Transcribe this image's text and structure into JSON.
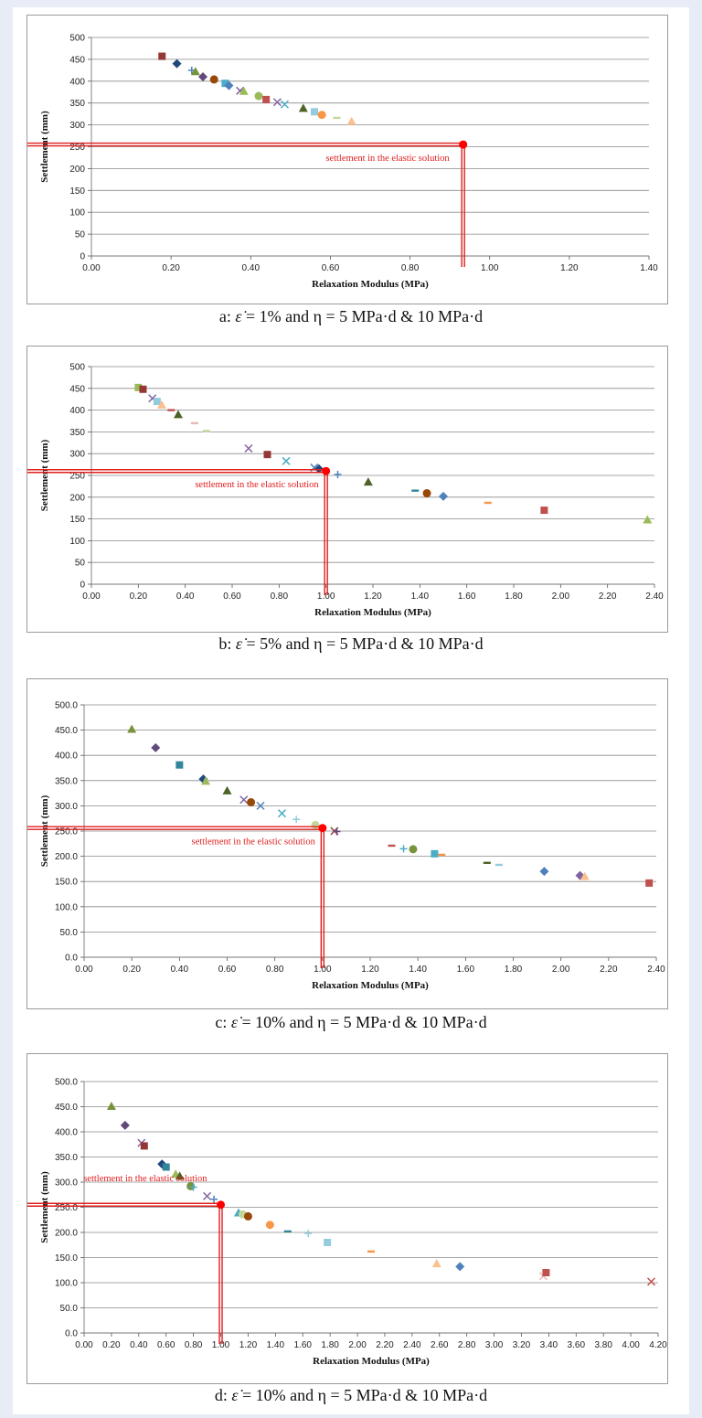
{
  "charts": [
    {
      "caption": {
        "prefix": "a: ",
        "symbol": "ε̇",
        "text": " = 1% and η = 5 MPa·d & 10 MPa·d"
      },
      "chart_data": {
        "type": "scatter",
        "title": "",
        "xlabel": "Relaxation Modulus (MPa)",
        "ylabel": "Settlement (mm)",
        "xlim": [
          0,
          1.5
        ],
        "ylim": [
          0,
          500
        ],
        "xticks": [
          "0.00",
          "0.20",
          "0.40",
          "0.60",
          "0.80",
          "1.00",
          "1.20",
          "1.40"
        ],
        "yticks": [
          "0",
          "50",
          "100",
          "150",
          "200",
          "250",
          "300",
          "350",
          "400",
          "450",
          "500"
        ],
        "grid": "horizontal",
        "annotation": {
          "text": "settlement in the elastic solution",
          "x": 1.0,
          "y": 255,
          "color": "#e01e1e"
        },
        "points": [
          [
            0.19,
            457,
            "square",
            "#953735"
          ],
          [
            0.23,
            440,
            "diamond",
            "#1f497d"
          ],
          [
            0.27,
            425,
            "plus",
            "#4f81bd"
          ],
          [
            0.28,
            422,
            "triangle",
            "#77933c"
          ],
          [
            0.3,
            410,
            "diamond",
            "#604a7b"
          ],
          [
            0.33,
            404,
            "circle",
            "#984807"
          ],
          [
            0.36,
            395,
            "square",
            "#4bacc6"
          ],
          [
            0.37,
            390,
            "diamond",
            "#4f81bd"
          ],
          [
            0.4,
            378,
            "x",
            "#8064a2"
          ],
          [
            0.41,
            377,
            "triangle",
            "#9bbb59"
          ],
          [
            0.45,
            366,
            "circle",
            "#9bbb59"
          ],
          [
            0.47,
            358,
            "square",
            "#c0504d"
          ],
          [
            0.5,
            352,
            "x",
            "#8064a2"
          ],
          [
            0.52,
            347,
            "x",
            "#4bacc6"
          ],
          [
            0.57,
            338,
            "triangle",
            "#4f6228"
          ],
          [
            0.6,
            330,
            "square",
            "#93cddd"
          ],
          [
            0.62,
            323,
            "circle",
            "#f79646"
          ],
          [
            0.66,
            316,
            "dash",
            "#c3d69b"
          ],
          [
            0.7,
            308,
            "triangle",
            "#fac090"
          ]
        ]
      }
    },
    {
      "caption": {
        "prefix": "b: ",
        "symbol": "ε̇",
        "text": " = 5% and η = 5 MPa·d & 10 MPa·d"
      },
      "chart_data": {
        "type": "scatter",
        "title": "",
        "xlabel": "Relaxation Modulus (MPa)",
        "ylabel": "Settlement (mm)",
        "xlim": [
          0,
          2.4
        ],
        "ylim": [
          0,
          500
        ],
        "xticks": [
          "0.00",
          "0.20",
          "0.40",
          "0.60",
          "0.80",
          "1.00",
          "1.20",
          "1.40",
          "1.60",
          "1.80",
          "2.00",
          "2.20",
          "2.40"
        ],
        "yticks": [
          "0",
          "50",
          "100",
          "150",
          "200",
          "250",
          "300",
          "350",
          "400",
          "450",
          "500"
        ],
        "grid": "horizontal",
        "annotation": {
          "text": "settlement in the elastic solution",
          "x": 1.0,
          "y": 260,
          "color": "#e01e1e"
        },
        "points": [
          [
            0.2,
            452,
            "square",
            "#9bbb59"
          ],
          [
            0.22,
            448,
            "square",
            "#953735"
          ],
          [
            0.26,
            427,
            "x",
            "#8064a2"
          ],
          [
            0.28,
            420,
            "square",
            "#93cddd"
          ],
          [
            0.3,
            412,
            "triangle",
            "#fac090"
          ],
          [
            0.34,
            400,
            "dash",
            "#c0504d"
          ],
          [
            0.37,
            390,
            "triangle",
            "#4f6228"
          ],
          [
            0.44,
            370,
            "dash",
            "#e6b9b8"
          ],
          [
            0.49,
            352,
            "dash",
            "#c3d69b"
          ],
          [
            0.67,
            312,
            "x",
            "#8064a2"
          ],
          [
            0.75,
            298,
            "square",
            "#953735"
          ],
          [
            0.83,
            283,
            "x",
            "#4bacc6"
          ],
          [
            0.95,
            268,
            "x",
            "#4f81bd"
          ],
          [
            0.97,
            265,
            "diamond",
            "#1f497d"
          ],
          [
            1.05,
            252,
            "plus",
            "#4f81bd"
          ],
          [
            1.18,
            235,
            "triangle",
            "#4f6228"
          ],
          [
            1.38,
            215,
            "dash",
            "#31859c"
          ],
          [
            1.43,
            209,
            "circle",
            "#984807"
          ],
          [
            1.5,
            202,
            "diamond",
            "#4f81bd"
          ],
          [
            1.69,
            187,
            "dash",
            "#f79646"
          ],
          [
            1.93,
            170,
            "square",
            "#c0504d"
          ],
          [
            2.37,
            148,
            "triangle",
            "#9bbb59"
          ]
        ]
      }
    },
    {
      "caption": {
        "prefix": "c: ",
        "symbol": "ε̇",
        "text": " = 10% and η = 5 MPa·d & 10 MPa·d"
      },
      "chart_data": {
        "type": "scatter",
        "title": "",
        "xlabel": "Relaxation Modulus (MPa)",
        "ylabel": "Settlement (mm)",
        "xlim": [
          0,
          2.4
        ],
        "ylim": [
          0,
          500
        ],
        "xticks": [
          "0.00",
          "0.20",
          "0.40",
          "0.60",
          "0.80",
          "1.00",
          "1.20",
          "1.40",
          "1.60",
          "1.80",
          "2.00",
          "2.20",
          "2.40"
        ],
        "yticks": [
          "0.0",
          "50.0",
          "100.0",
          "150.0",
          "200.0",
          "250.0",
          "300.0",
          "350.0",
          "400.0",
          "450.0",
          "500.0"
        ],
        "grid": "horizontal",
        "annotation": {
          "text": "settlement in the elastic solution",
          "x": 1.0,
          "y": 256,
          "color": "#e01e1e"
        },
        "points": [
          [
            0.2,
            452,
            "triangle",
            "#77933c"
          ],
          [
            0.3,
            415,
            "diamond",
            "#604a7b"
          ],
          [
            0.4,
            381,
            "square",
            "#31859c"
          ],
          [
            0.5,
            353,
            "diamond",
            "#1f497d"
          ],
          [
            0.51,
            349,
            "triangle",
            "#9bbb59"
          ],
          [
            0.6,
            330,
            "triangle",
            "#4f6228"
          ],
          [
            0.67,
            312,
            "x",
            "#8064a2"
          ],
          [
            0.7,
            307,
            "circle",
            "#984807"
          ],
          [
            0.74,
            300,
            "x",
            "#4f81bd"
          ],
          [
            0.83,
            285,
            "x",
            "#4bacc6"
          ],
          [
            0.89,
            273,
            "plus",
            "#93cddd"
          ],
          [
            0.97,
            262,
            "circle",
            "#c3d69b"
          ],
          [
            1.05,
            250,
            "x",
            "#953735"
          ],
          [
            1.06,
            249,
            "plus",
            "#604a7b"
          ],
          [
            1.29,
            221,
            "dash",
            "#c0504d"
          ],
          [
            1.34,
            215,
            "plus",
            "#4bacc6"
          ],
          [
            1.38,
            214,
            "circle",
            "#77933c"
          ],
          [
            1.47,
            205,
            "square",
            "#4bacc6"
          ],
          [
            1.5,
            203,
            "dash",
            "#f79646"
          ],
          [
            1.69,
            187,
            "dash",
            "#4f6228"
          ],
          [
            1.74,
            183,
            "dash",
            "#93cddd"
          ],
          [
            1.93,
            170,
            "diamond",
            "#4f81bd"
          ],
          [
            2.08,
            162,
            "diamond",
            "#8064a2"
          ],
          [
            2.1,
            160,
            "triangle",
            "#fac090"
          ],
          [
            2.37,
            147,
            "square",
            "#c0504d"
          ]
        ]
      }
    },
    {
      "caption": {
        "prefix": "d: ",
        "symbol": "ε̇",
        "text": " = 10% and η = 5 MPa·d & 10 MPa·d"
      },
      "chart_data": {
        "type": "scatter",
        "title": "",
        "xlabel": "Relaxation Modulus (MPa)",
        "ylabel": "Settlement (mm)",
        "xlim": [
          0,
          4.2
        ],
        "ylim": [
          0,
          500
        ],
        "xticks": [
          "0.00",
          "0.20",
          "0.40",
          "0.60",
          "0.80",
          "1.00",
          "1.20",
          "1.40",
          "1.60",
          "1.80",
          "2.00",
          "2.20",
          "2.40",
          "2.60",
          "2.80",
          "3.00",
          "3.20",
          "3.40",
          "3.60",
          "3.80",
          "4.00",
          "4.20"
        ],
        "yticks": [
          "0.0",
          "50.0",
          "100.0",
          "150.0",
          "200.0",
          "250.0",
          "300.0",
          "350.0",
          "400.0",
          "450.0",
          "500.0"
        ],
        "grid": "horizontal",
        "annotation": {
          "text": "settlement in the elastic solution",
          "x": 1.0,
          "y": 255,
          "color": "#e01e1e"
        },
        "points": [
          [
            0.2,
            451,
            "triangle",
            "#77933c"
          ],
          [
            0.3,
            413,
            "diamond",
            "#604a7b"
          ],
          [
            0.42,
            378,
            "x",
            "#8064a2"
          ],
          [
            0.44,
            372,
            "square",
            "#953735"
          ],
          [
            0.57,
            336,
            "diamond",
            "#1f497d"
          ],
          [
            0.6,
            330,
            "square",
            "#31859c"
          ],
          [
            0.67,
            316,
            "triangle",
            "#9bbb59"
          ],
          [
            0.7,
            312,
            "triangle",
            "#4f6228"
          ],
          [
            0.78,
            292,
            "circle",
            "#77933c"
          ],
          [
            0.8,
            290,
            "plus",
            "#4bacc6"
          ],
          [
            0.9,
            272,
            "x",
            "#8064a2"
          ],
          [
            0.95,
            266,
            "plus",
            "#4f81bd"
          ],
          [
            1.13,
            239,
            "triangle",
            "#4bacc6"
          ],
          [
            1.16,
            236,
            "circle",
            "#c3d69b"
          ],
          [
            1.2,
            232,
            "circle",
            "#984807"
          ],
          [
            1.36,
            215,
            "circle",
            "#f79646"
          ],
          [
            1.49,
            202,
            "dash",
            "#31859c"
          ],
          [
            1.64,
            198,
            "plus",
            "#93cddd"
          ],
          [
            1.78,
            180,
            "square",
            "#93cddd"
          ],
          [
            2.1,
            162,
            "dash",
            "#f79646"
          ],
          [
            2.58,
            138,
            "triangle",
            "#fac090"
          ],
          [
            2.75,
            132,
            "diamond",
            "#4f81bd"
          ],
          [
            3.36,
            113,
            "x",
            "#e6b9b8"
          ],
          [
            3.38,
            120,
            "square",
            "#c0504d"
          ],
          [
            4.15,
            102,
            "x",
            "#c0504d"
          ]
        ]
      }
    }
  ]
}
